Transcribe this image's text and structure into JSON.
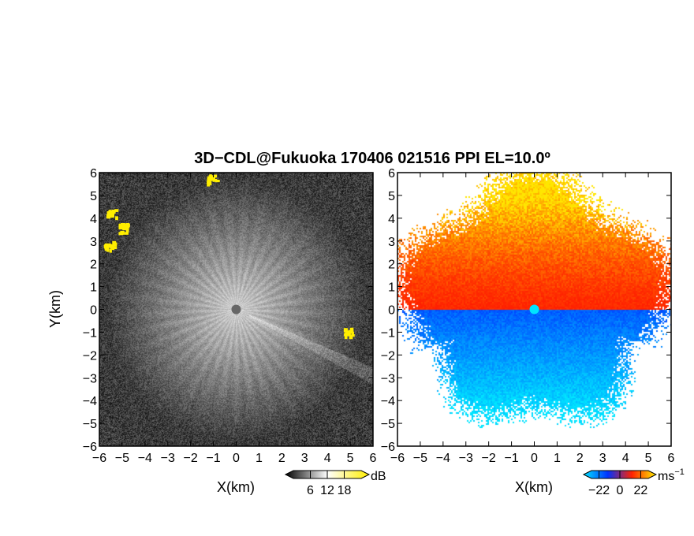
{
  "chart_data": [
    {
      "type": "heatmap",
      "panel": "reflectivity",
      "xlabel": "X(km)",
      "ylabel": "Y(km)",
      "xlim": [
        -6,
        6
      ],
      "ylim": [
        -6,
        6
      ],
      "xticks": [
        -6,
        -5,
        -4,
        -3,
        -2,
        -1,
        0,
        1,
        2,
        3,
        4,
        5,
        6
      ],
      "yticks": [
        -6,
        -5,
        -4,
        -3,
        -2,
        -1,
        0,
        1,
        2,
        3,
        4,
        5,
        6
      ],
      "colormap": "gray",
      "colorbar": {
        "unit": "dB",
        "ticks": [
          6,
          12,
          18
        ],
        "range": [
          0,
          24
        ]
      },
      "highlights": [
        {
          "x": -1.1,
          "y": 5.8,
          "color": "#ffee00"
        },
        {
          "x": -5.5,
          "y": 4.2,
          "color": "#ffee00"
        },
        {
          "x": -5.0,
          "y": 3.6,
          "color": "#ffee00"
        },
        {
          "x": -5.6,
          "y": 2.8,
          "color": "#ffee00"
        },
        {
          "x": 4.9,
          "y": -0.9,
          "color": "#ffee00"
        }
      ]
    },
    {
      "type": "heatmap",
      "panel": "radial-velocity",
      "xlabel": "X(km)",
      "xlim": [
        -6,
        6
      ],
      "ylim": [
        -6,
        6
      ],
      "xticks": [
        -6,
        -5,
        -4,
        -3,
        -2,
        -1,
        0,
        1,
        2,
        3,
        4,
        5,
        6
      ],
      "yticks": [
        -6,
        -5,
        -4,
        -3,
        -2,
        -1,
        0,
        1,
        2,
        3,
        4,
        5,
        6
      ],
      "colormap": "cyan-blue-red-yellow",
      "colorbar": {
        "unit": "ms",
        "unit_sup": "−1",
        "ticks": [
          -22,
          0,
          22
        ],
        "range": [
          -30,
          30
        ]
      }
    }
  ],
  "title": "3D−CDL@Fukuoka 170406 021516 PPI EL=10.0º",
  "colors": {
    "yellow": "#ffee00",
    "cyan": "#00e5ff",
    "blue": "#0033ff",
    "red": "#ff2200",
    "orange": "#ff8800"
  }
}
